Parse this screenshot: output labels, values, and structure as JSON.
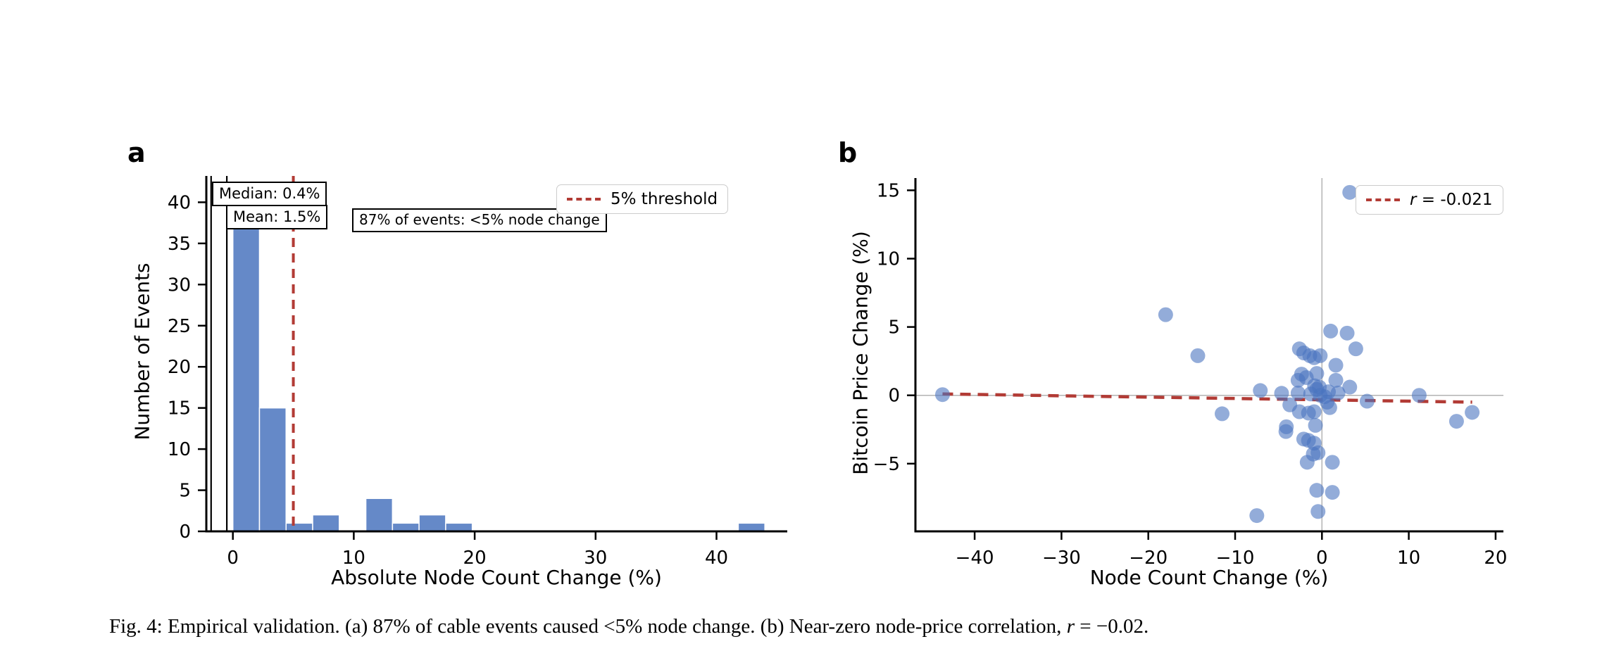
{
  "figure": {
    "panel_a": {
      "letter": "a",
      "xlabel": "Absolute Node Count Change (%)",
      "ylabel": "Number of Events",
      "xtick_labels": [
        "0",
        "10",
        "20",
        "30",
        "40"
      ],
      "ytick_labels": [
        "0",
        "5",
        "10",
        "15",
        "20",
        "25",
        "30",
        "35",
        "40"
      ],
      "annotations": {
        "median": "Median: 0.4%",
        "mean": "Mean: 1.5%",
        "events": "87% of events: <5% node change"
      },
      "legend_label": "5% threshold"
    },
    "panel_b": {
      "letter": "b",
      "xlabel": "Node Count Change (%)",
      "ylabel": "Bitcoin Price Change (%)",
      "xtick_labels": [
        "−40",
        "−30",
        "−20",
        "−10",
        "0",
        "10",
        "20"
      ],
      "ytick_labels": [
        "−5",
        "0",
        "5",
        "10",
        "15"
      ],
      "legend_symbol": "r",
      "legend_rest": " = -0.021"
    },
    "caption": {
      "prefix": "Fig. 4: Empirical validation. (a) 87% of cable events caused <5% node change. (b) Near-zero node-price correlation, ",
      "r_symbol": "r",
      "suffix": " = −0.02."
    },
    "colors": {
      "bar_blue": "#6589c8",
      "scatter_blue": "#4b74bf",
      "accent_red": "#b23b35",
      "ref_gray": "#b3b3b3",
      "stat_line_black": "#000000",
      "legend_border": "#cccccc"
    }
  },
  "chart_data": [
    {
      "type": "bar",
      "subtype": "histogram",
      "title": "",
      "xlabel": "Absolute Node Count Change (%)",
      "ylabel": "Number of Events",
      "bin_start": 0,
      "bin_width": 2.2,
      "counts": [
        40,
        15,
        1,
        2,
        0,
        4,
        1,
        2,
        1,
        0,
        0,
        0,
        0,
        0,
        0,
        0,
        0,
        0,
        0,
        1
      ],
      "xticks": [
        0,
        10,
        20,
        30,
        40
      ],
      "yticks": [
        0,
        5,
        10,
        15,
        20,
        25,
        30,
        35,
        40
      ],
      "xlim": [
        -2.2,
        45.9
      ],
      "ylim": [
        0,
        43.2
      ],
      "threshold_x": 5,
      "stat_lines_x": [
        -1.8,
        -0.5
      ],
      "legend": "5% threshold",
      "legend_position": "upper right",
      "grid": false,
      "annotations": [
        "Median: 0.4%",
        "Mean: 1.5%",
        "87% of events: <5% node change"
      ]
    },
    {
      "type": "scatter",
      "title": "",
      "xlabel": "Node Count Change (%)",
      "ylabel": "Bitcoin Price Change (%)",
      "xticks": [
        -40,
        -30,
        -20,
        -10,
        0,
        10,
        20
      ],
      "yticks": [
        -5,
        0,
        5,
        10,
        15
      ],
      "xlim": [
        -46.8,
        20.9
      ],
      "ylim": [
        -10.0,
        15.9
      ],
      "refline_x": 0,
      "refline_y": 0,
      "regression": {
        "x1": -43.7,
        "y1": 0.1,
        "x2": 17.3,
        "y2": -0.5,
        "label": "r = -0.021"
      },
      "legend_position": "upper right",
      "grid": false,
      "points": [
        [
          -43.7,
          0.05
        ],
        [
          -18,
          5.9
        ],
        [
          -14.3,
          2.9
        ],
        [
          -11.5,
          -1.35
        ],
        [
          -7.5,
          -8.8
        ],
        [
          -7.1,
          0.35
        ],
        [
          -4.65,
          0.15
        ],
        [
          -4.1,
          -2.3
        ],
        [
          -4.15,
          -2.65
        ],
        [
          -3.7,
          -0.7
        ],
        [
          -2.6,
          3.4
        ],
        [
          -2.1,
          3.1
        ],
        [
          -1.4,
          2.9
        ],
        [
          -0.9,
          2.75
        ],
        [
          -0.2,
          2.9
        ],
        [
          -2.35,
          1.55
        ],
        [
          -1.8,
          1.3
        ],
        [
          -2.75,
          1.1
        ],
        [
          -0.6,
          1.6
        ],
        [
          -0.85,
          0.7
        ],
        [
          -0.3,
          0.6
        ],
        [
          -2.75,
          0.17
        ],
        [
          -1.3,
          0.1
        ],
        [
          -0.6,
          0.43
        ],
        [
          -0.2,
          0
        ],
        [
          -2.6,
          -1.2
        ],
        [
          -1.55,
          -1.3
        ],
        [
          -0.9,
          -1.2
        ],
        [
          -0.75,
          -2.2
        ],
        [
          -2.1,
          -3.2
        ],
        [
          -1.55,
          -3.3
        ],
        [
          -0.9,
          -3.5
        ],
        [
          -1.0,
          -4.3
        ],
        [
          -0.45,
          -4.2
        ],
        [
          -1.7,
          -4.9
        ],
        [
          1.2,
          -4.9
        ],
        [
          -0.6,
          -6.95
        ],
        [
          1.2,
          -7.1
        ],
        [
          -0.45,
          -8.5
        ],
        [
          0.75,
          0.26
        ],
        [
          1.85,
          0.17
        ],
        [
          1.6,
          1.1
        ],
        [
          1.6,
          2.2
        ],
        [
          1.0,
          4.7
        ],
        [
          2.9,
          4.55
        ],
        [
          3.9,
          3.4
        ],
        [
          3.2,
          0.6
        ],
        [
          3.2,
          14.85
        ],
        [
          5.2,
          -0.43
        ],
        [
          11.2,
          0
        ],
        [
          15.5,
          -1.9
        ],
        [
          17.3,
          -1.25
        ],
        [
          0.3,
          -0.1
        ],
        [
          0.6,
          -0.5
        ],
        [
          0.9,
          -0.9
        ]
      ]
    }
  ]
}
